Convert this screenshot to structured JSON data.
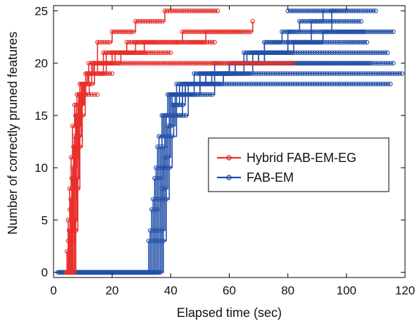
{
  "chart_data": {
    "type": "line",
    "title": "",
    "xlabel": "Elapsed time (sec)",
    "ylabel": "Number of correctly pruned features",
    "xlim": [
      0,
      120
    ],
    "ylim": [
      -0.5,
      25.5
    ],
    "xticks": [
      0,
      20,
      40,
      60,
      80,
      100,
      120
    ],
    "yticks": [
      0,
      5,
      10,
      15,
      20,
      25
    ],
    "grid": false,
    "legend_position": "center-right",
    "marker": "circle",
    "colors": {
      "hybrid": "#e8302c",
      "fab": "#2350a8"
    },
    "series": [
      {
        "name": "Hybrid FAB-EM-EG",
        "runs": [
          {
            "x": [
              4.2,
              4.6,
              5.0,
              5.5,
              6.0,
              6.5,
              7.2,
              8.0,
              9.0,
              10.5,
              11.5
            ],
            "y": [
              0,
              2,
              5,
              8,
              11,
              14,
              16,
              17,
              18,
              18,
              18
            ]
          },
          {
            "x": [
              4.5,
              5.0,
              5.6,
              6.2,
              6.8,
              7.5,
              8.5,
              9.5,
              12,
              15
            ],
            "y": [
              0,
              3,
              6,
              9,
              12,
              15,
              16,
              17,
              17,
              17
            ]
          },
          {
            "x": [
              4.8,
              5.3,
              5.9,
              6.5,
              7.1,
              7.8,
              8.6,
              9.5,
              11,
              13,
              16,
              20
            ],
            "y": [
              0,
              4,
              7,
              10,
              13,
              16,
              17,
              18,
              18,
              19,
              19,
              19
            ]
          },
          {
            "x": [
              5.0,
              5.5,
              6.1,
              6.7,
              7.3,
              8.0,
              8.8,
              9.8,
              11,
              14,
              18,
              22
            ],
            "y": [
              0,
              3,
              6,
              9,
              12,
              15,
              17,
              18,
              19,
              19,
              20,
              20
            ]
          },
          {
            "x": [
              5.2,
              5.8,
              6.4,
              7.0,
              7.6,
              8.3,
              9.1,
              10.2,
              11.5,
              14,
              18,
              23,
              31
            ],
            "y": [
              0,
              4,
              8,
              11,
              14,
              16,
              17,
              18,
              19,
              20,
              20,
              21,
              21
            ]
          },
          {
            "x": [
              5.5,
              6.0,
              6.6,
              7.2,
              7.9,
              8.6,
              9.4,
              10.5,
              12,
              15,
              20,
              26,
              34,
              40
            ],
            "y": [
              0,
              3,
              7,
              10,
              13,
              15,
              17,
              18,
              19,
              20,
              21,
              21,
              21,
              21
            ]
          },
          {
            "x": [
              5.8,
              6.3,
              6.9,
              7.5,
              8.2,
              9.0,
              9.9,
              11,
              13,
              16,
              21,
              28,
              37,
              45,
              55
            ],
            "y": [
              0,
              4,
              8,
              11,
              14,
              16,
              17,
              19,
              20,
              20,
              21,
              22,
              22,
              22,
              22
            ]
          },
          {
            "x": [
              6.1,
              6.6,
              7.2,
              7.8,
              8.5,
              9.3,
              10.2,
              11.5,
              13.5,
              17,
              23,
              31,
              41,
              52,
              64
            ],
            "y": [
              0,
              3,
              7,
              11,
              14,
              16,
              18,
              19,
              20,
              21,
              21,
              22,
              22,
              23,
              23
            ]
          },
          {
            "x": [
              6.4,
              7.0,
              7.6,
              8.3,
              9.0,
              9.8,
              10.8,
              12,
              14,
              18,
              25,
              33,
              44,
              56,
              68
            ],
            "y": [
              0,
              4,
              8,
              12,
              15,
              17,
              18,
              19,
              20,
              21,
              22,
              22,
              23,
              23,
              24
            ]
          },
          {
            "x": [
              6.8,
              7.4,
              8.0,
              8.7,
              9.5,
              10.5,
              12,
              15,
              20,
              28,
              38,
              48,
              56
            ],
            "y": [
              0,
              5,
              9,
              13,
              16,
              18,
              20,
              22,
              23,
              24,
              25,
              25,
              25
            ]
          },
          {
            "x": [
              7.0,
              7.6,
              8.3,
              9.0,
              9.8,
              10.8,
              12.2,
              14,
              17,
              22,
              30,
              42,
              56,
              70,
              82
            ],
            "y": [
              0,
              4,
              8,
              12,
              15,
              17,
              18,
              19,
              20,
              20,
              20,
              20,
              20,
              20,
              20
            ]
          }
        ]
      },
      {
        "name": "FAB-EM",
        "runs": [
          {
            "x": [
              1.5,
              8,
              16,
              24,
              31.5,
              32.5,
              33.5,
              34.5,
              35.5,
              37,
              39,
              42,
              48,
              55,
              65,
              75,
              85,
              95,
              105,
              115
            ],
            "y": [
              0,
              0,
              0,
              0,
              0,
              3,
              6,
              9,
              12,
              15,
              17,
              18,
              18,
              18,
              18,
              18,
              18,
              18,
              18,
              18
            ]
          },
          {
            "x": [
              2,
              10,
              20,
              30,
              32,
              33,
              34,
              35,
              36,
              37.5,
              39.5,
              43,
              50,
              60,
              70,
              80,
              90,
              100,
              110,
              119
            ],
            "y": [
              0,
              0,
              0,
              0,
              0,
              4,
              7,
              10,
              13,
              15,
              17,
              18,
              19,
              19,
              19,
              19,
              19,
              19,
              19,
              19
            ]
          },
          {
            "x": [
              2.5,
              12,
              22,
              32.5,
              33.5,
              34.5,
              35.5,
              36.5,
              38,
              40,
              44,
              50,
              60,
              70,
              80,
              90,
              100,
              110,
              116
            ],
            "y": [
              0,
              0,
              0,
              0,
              3,
              6,
              9,
              12,
              15,
              17,
              18,
              19,
              20,
              20,
              20,
              20,
              20,
              20,
              20
            ]
          },
          {
            "x": [
              3,
              14,
              24,
              33,
              34,
              35,
              36,
              37,
              38.5,
              40.5,
              43,
              48,
              55,
              65,
              75,
              85,
              95,
              105,
              114
            ],
            "y": [
              0,
              0,
              0,
              0,
              4,
              7,
              10,
              13,
              15,
              17,
              18,
              19,
              20,
              21,
              21,
              21,
              21,
              21,
              21
            ]
          },
          {
            "x": [
              3.5,
              15,
              25,
              33.5,
              34.5,
              35.5,
              36.5,
              37.5,
              39,
              41,
              44,
              50,
              58,
              68,
              78,
              88,
              98,
              108
            ],
            "y": [
              0,
              0,
              0,
              0,
              3,
              6,
              9,
              12,
              14,
              16,
              17,
              18,
              19,
              20,
              20,
              20,
              20,
              20
            ]
          },
          {
            "x": [
              4,
              16,
              26,
              34,
              35,
              36,
              37,
              38,
              39.5,
              41.5,
              45,
              52,
              60,
              70,
              80,
              90,
              100,
              107
            ],
            "y": [
              0,
              0,
              0,
              0,
              4,
              7,
              10,
              13,
              15,
              17,
              18,
              19,
              20,
              21,
              22,
              22,
              22,
              22
            ]
          },
          {
            "x": [
              5,
              17,
              27,
              34.5,
              35.5,
              36.5,
              37.5,
              38.5,
              40,
              42,
              46,
              54,
              62,
              72,
              82,
              92,
              102,
              106
            ],
            "y": [
              0,
              0,
              0,
              0,
              3,
              7,
              10,
              13,
              15,
              17,
              18,
              19,
              20,
              21,
              22,
              23,
              23,
              23
            ]
          },
          {
            "x": [
              6,
              18,
              28,
              35,
              36,
              37,
              38,
              39,
              40.5,
              43,
              48,
              55,
              62,
              70,
              80,
              92,
              104,
              116
            ],
            "y": [
              0,
              0,
              0,
              0,
              4,
              8,
              11,
              14,
              16,
              17,
              18,
              19,
              20,
              21,
              22,
              23,
              23,
              23
            ]
          },
          {
            "x": [
              7,
              19,
              29,
              35.5,
              36.5,
              37.5,
              38.5,
              39.5,
              41,
              44,
              50,
              58,
              65,
              72,
              80,
              88,
              95,
              105
            ],
            "y": [
              0,
              0,
              0,
              0,
              3,
              7,
              10,
              13,
              15,
              17,
              18,
              19,
              20,
              21,
              22,
              23,
              24,
              24
            ]
          },
          {
            "x": [
              8,
              20,
              30,
              36,
              37,
              38,
              39,
              40,
              41.5,
              45,
              52,
              60,
              66,
              72,
              80,
              88,
              95,
              100
            ],
            "y": [
              0,
              0,
              0,
              0,
              4,
              8,
              11,
              14,
              16,
              18,
              19,
              20,
              21,
              22,
              23,
              24,
              25,
              25
            ]
          },
          {
            "x": [
              9,
              21,
              31,
              36.5,
              37.5,
              38.5,
              39.5,
              40.5,
              42,
              46,
              55,
              62,
              68,
              72,
              78,
              84,
              92
            ],
            "y": [
              0,
              0,
              0,
              0,
              3,
              7,
              10,
              13,
              15,
              17,
              19,
              20,
              21,
              22,
              23,
              24,
              25
            ]
          },
          {
            "x": [
              80,
              88,
              96,
              104,
              110
            ],
            "y": [
              25,
              25,
              25,
              25,
              25
            ]
          }
        ]
      }
    ]
  }
}
